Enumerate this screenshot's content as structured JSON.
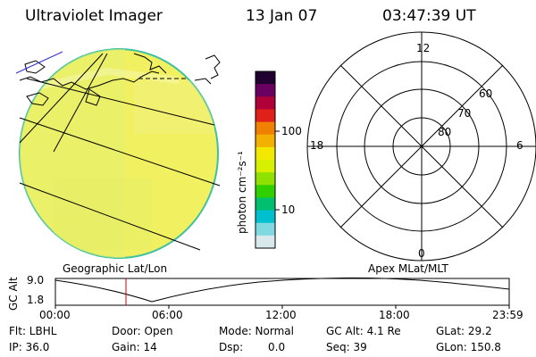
{
  "header": {
    "title": "Ultraviolet Imager",
    "date": "13 Jan 07",
    "time": "03:47:39 UT"
  },
  "colorbar": {
    "unit_label": "photon cm⁻²s⁻¹",
    "tick_high": "100",
    "tick_low": "10",
    "colors": [
      "#200030",
      "#6a0060",
      "#b0003a",
      "#e0201a",
      "#f08000",
      "#f2b000",
      "#f2e800",
      "#d6f000",
      "#90e000",
      "#30d000",
      "#00c070",
      "#00c0d0",
      "#80d8e0",
      "#d8e8ec"
    ]
  },
  "earth_panel": {
    "label": "Geographic Lat/Lon",
    "fill_color": "#f0f060",
    "limb_color": "#40c0a0"
  },
  "polar_panel": {
    "label": "Apex MLat/MLT",
    "mlt_top": "12",
    "mlt_left": "18",
    "mlt_right": "6",
    "mlt_bottom": "0",
    "lat_60": "60",
    "lat_70": "70",
    "lat_80": "80"
  },
  "altitude_plot": {
    "y_label": "GC Alt",
    "y_max": "9.0",
    "y_min": "1.8",
    "x_ticks": [
      "00:00",
      "06:00",
      "12:00",
      "18:00",
      "23:59"
    ],
    "current_marker_color": "#cc0000"
  },
  "info": {
    "flt": "Flt: LBHL",
    "ip": "IP: 36.0",
    "door": "Door: Open",
    "gain": "Gain: 14",
    "mode": "Mode: Normal",
    "dsp_label": "Dsp:",
    "dsp_value": "0.0",
    "gc_alt": "GC Alt: 4.1 Re",
    "seq": "Seq: 39",
    "glat": "GLat:  29.2",
    "glon": "GLon: 150.8"
  }
}
